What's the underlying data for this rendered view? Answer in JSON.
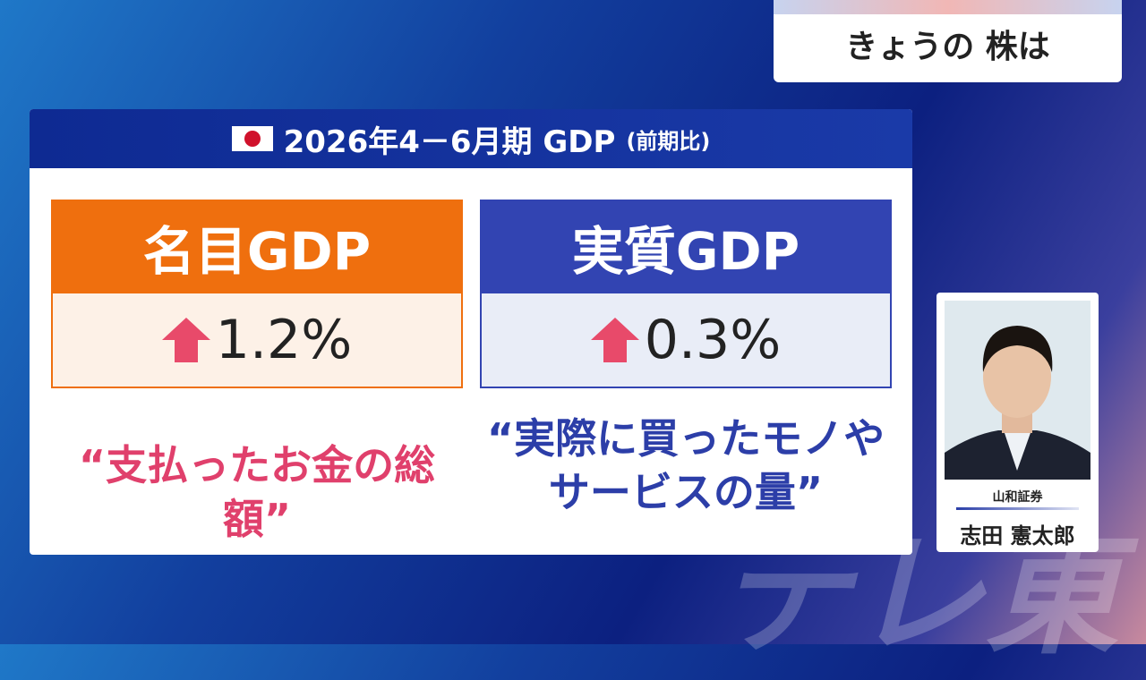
{
  "corner_label": "きょうの 株は",
  "panel": {
    "title": "2026年4－6月期 GDP",
    "title_note": "(前期比)",
    "cards": [
      {
        "title": "名目GDP",
        "value": "1.2%",
        "description": [
          "“支払ったお金の総額”"
        ]
      },
      {
        "title": "実質GDP",
        "value": "0.3%",
        "description": [
          "“実際に買ったモノや",
          "サービスの量”"
        ]
      }
    ]
  },
  "commentator": {
    "company": "山和証券",
    "name": "志田 憲太郎"
  },
  "watermark": "テレ東"
}
